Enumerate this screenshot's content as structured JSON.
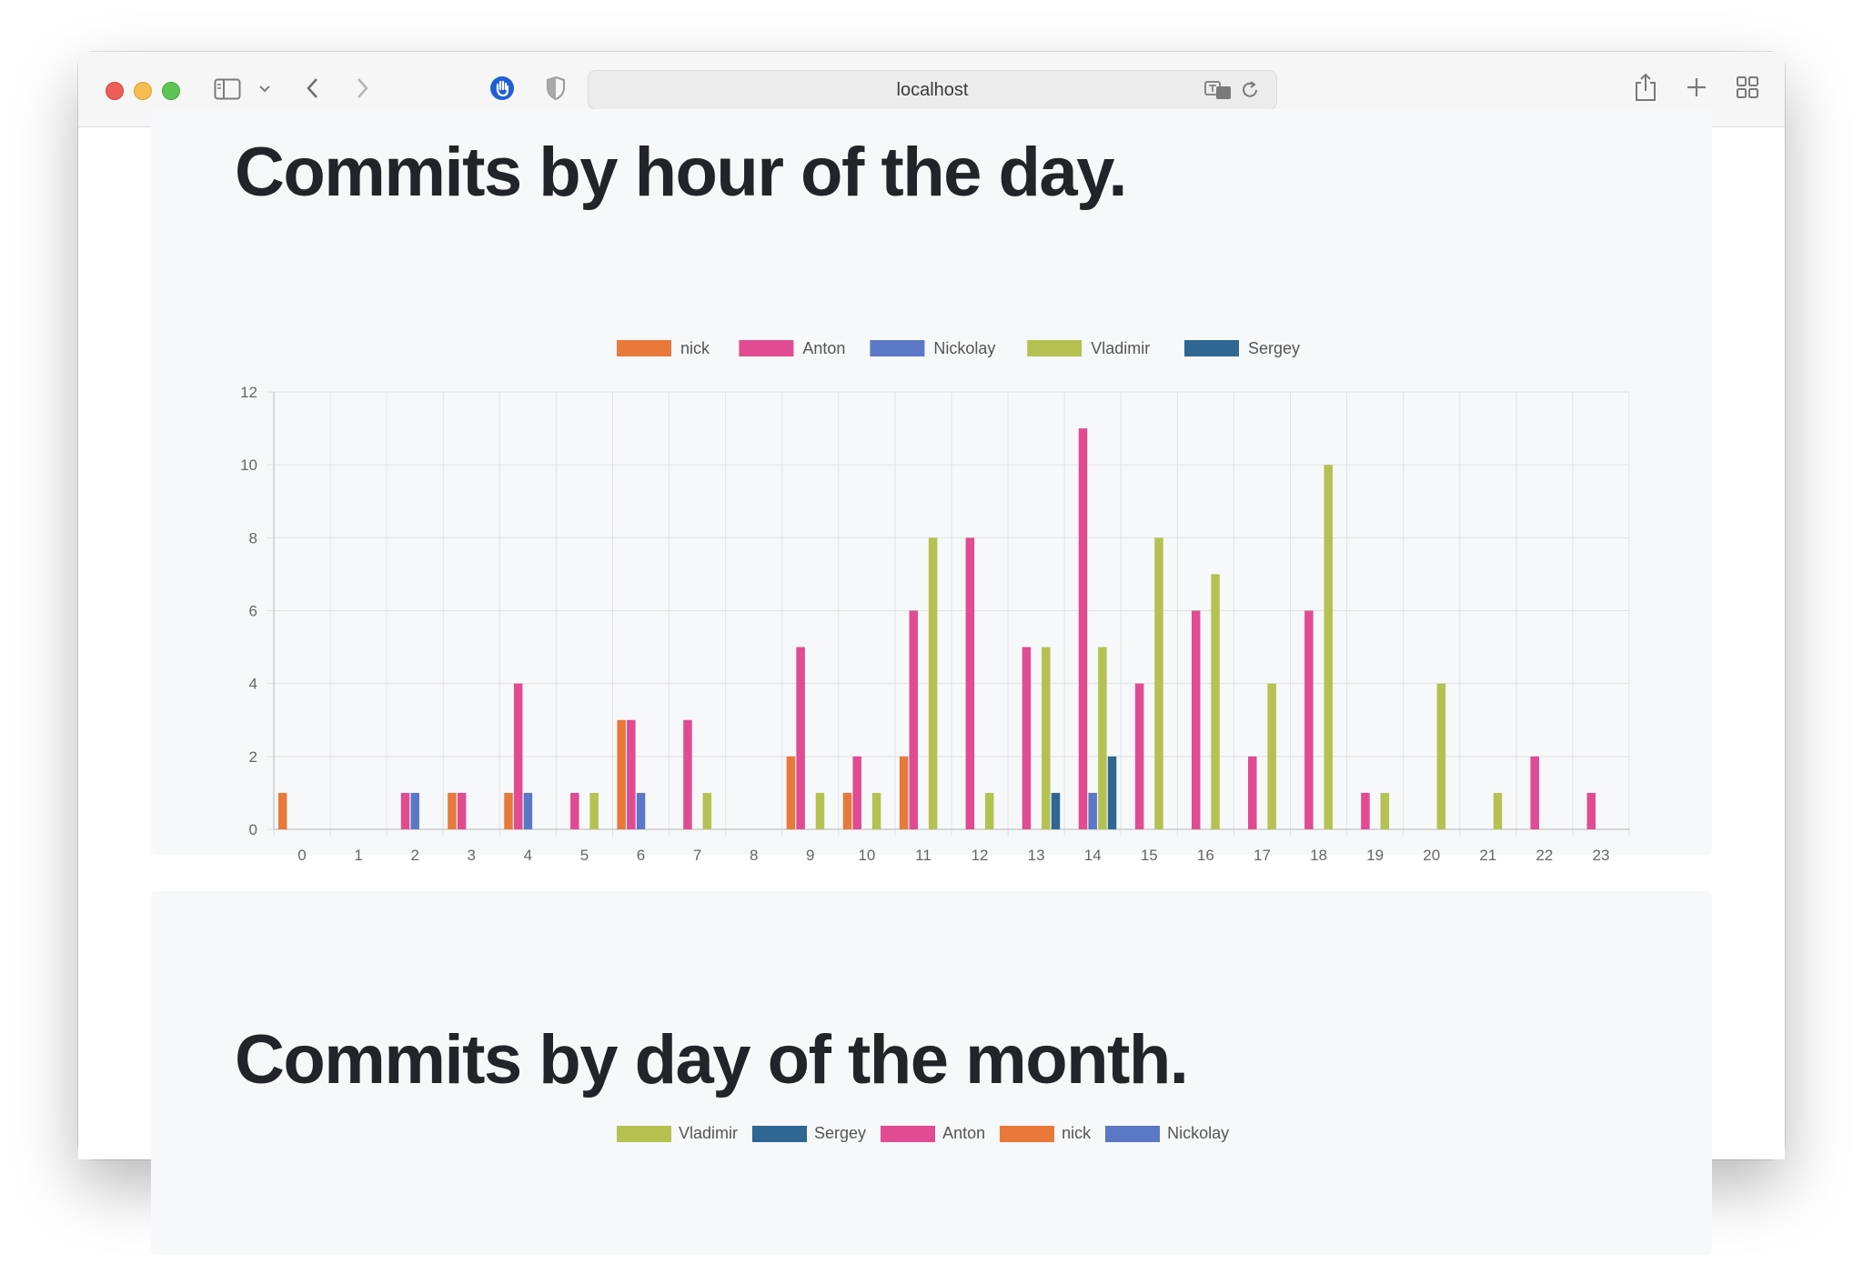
{
  "browser": {
    "url": "localhost"
  },
  "colors": {
    "nick": "#e8793a",
    "Anton": "#e04b92",
    "Nickolay": "#5b78c6",
    "Vladimir": "#b4c252",
    "Sergey": "#2f6792",
    "grid": "#e2e2e2",
    "axis": "#cccccc"
  },
  "sections": {
    "hour_title": "Commits by hour of the day.",
    "month_title": "Commits by day of the month."
  },
  "month_legend": [
    "Vladimir",
    "Sergey",
    "Anton",
    "nick",
    "Nickolay"
  ],
  "chart_data": {
    "type": "bar",
    "title": "Commits by hour of the day.",
    "xlabel": "",
    "ylabel": "",
    "ylim": [
      0,
      12
    ],
    "yticks": [
      "0",
      "2",
      "4",
      "6",
      "8",
      "10",
      "12"
    ],
    "categories": [
      "0",
      "1",
      "2",
      "3",
      "4",
      "5",
      "6",
      "7",
      "8",
      "9",
      "10",
      "11",
      "12",
      "13",
      "14",
      "15",
      "16",
      "17",
      "18",
      "19",
      "20",
      "21",
      "22",
      "23"
    ],
    "series": [
      {
        "name": "nick",
        "values": [
          1,
          0,
          0,
          1,
          1,
          0,
          3,
          0,
          0,
          2,
          1,
          2,
          0,
          0,
          0,
          0,
          0,
          0,
          0,
          0,
          0,
          0,
          0,
          0
        ]
      },
      {
        "name": "Anton",
        "values": [
          0,
          0,
          1,
          1,
          4,
          1,
          3,
          3,
          0,
          5,
          2,
          6,
          8,
          5,
          11,
          4,
          6,
          2,
          6,
          1,
          0,
          0,
          2,
          1
        ]
      },
      {
        "name": "Nickolay",
        "values": [
          0,
          0,
          1,
          0,
          1,
          0,
          1,
          0,
          0,
          0,
          0,
          0,
          0,
          0,
          1,
          0,
          0,
          0,
          0,
          0,
          0,
          0,
          0,
          0
        ]
      },
      {
        "name": "Vladimir",
        "values": [
          0,
          0,
          0,
          0,
          0,
          1,
          0,
          1,
          0,
          1,
          1,
          8,
          1,
          5,
          5,
          8,
          7,
          4,
          10,
          1,
          4,
          1,
          0,
          0
        ]
      },
      {
        "name": "Sergey",
        "values": [
          0,
          0,
          0,
          0,
          0,
          0,
          0,
          0,
          0,
          0,
          0,
          0,
          0,
          1,
          2,
          0,
          0,
          0,
          0,
          0,
          0,
          0,
          0,
          0
        ]
      }
    ]
  }
}
